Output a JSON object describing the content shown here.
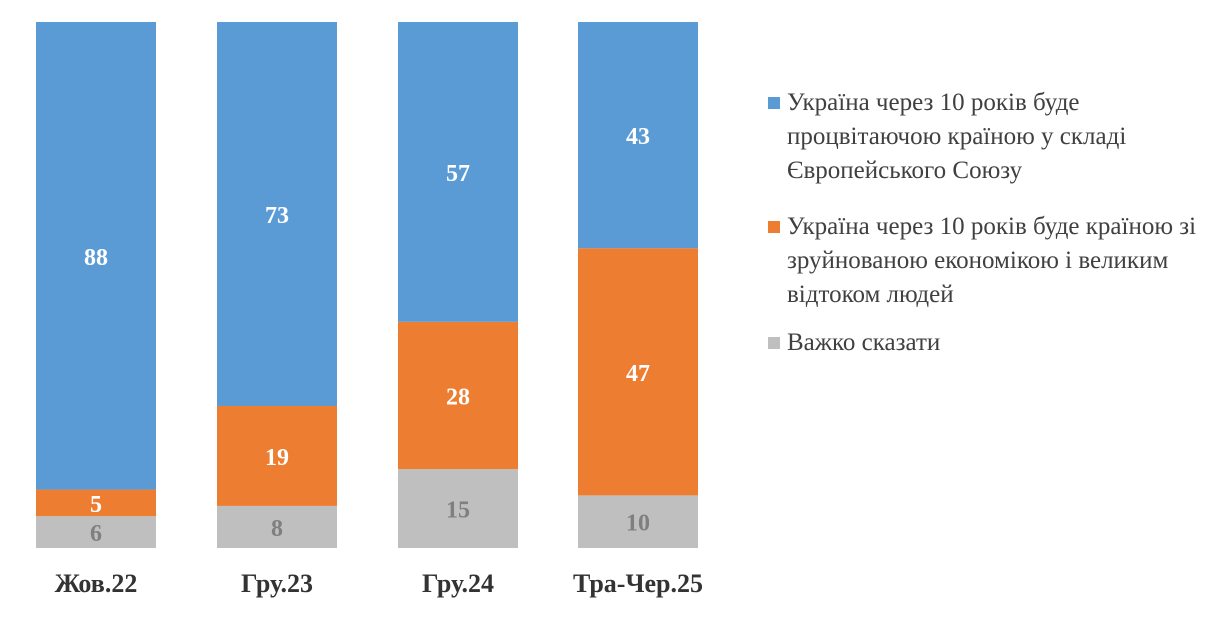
{
  "chart_data": {
    "type": "bar",
    "stacked": true,
    "percent_stacked": true,
    "categories": [
      "Жов.22",
      "Гру.23",
      "Гру.24",
      "Тра-Чер.25"
    ],
    "series": [
      {
        "name": "Важко сказати",
        "values": [
          6,
          8,
          15,
          10
        ],
        "color": "#bfbfbf",
        "label_color": "#7f7f7f",
        "label_bold": false
      },
      {
        "name": "Україна через 10 років буде країною зі зруйнованою економікою і великим відтоком людей",
        "values": [
          5,
          19,
          28,
          47
        ],
        "color": "#ed7d31",
        "label_color": "#ffffff",
        "label_bold": true
      },
      {
        "name": "Україна через 10 років буде процвітаючою країною у складі Європейського Союзу",
        "values": [
          88,
          73,
          57,
          43
        ],
        "color": "#5b9bd5",
        "label_color": "#ffffff",
        "label_bold": true
      }
    ],
    "legend_order": [
      2,
      1,
      0
    ],
    "legend_position": "right",
    "grid": false,
    "title": "",
    "xlabel": "",
    "ylabel": ""
  }
}
